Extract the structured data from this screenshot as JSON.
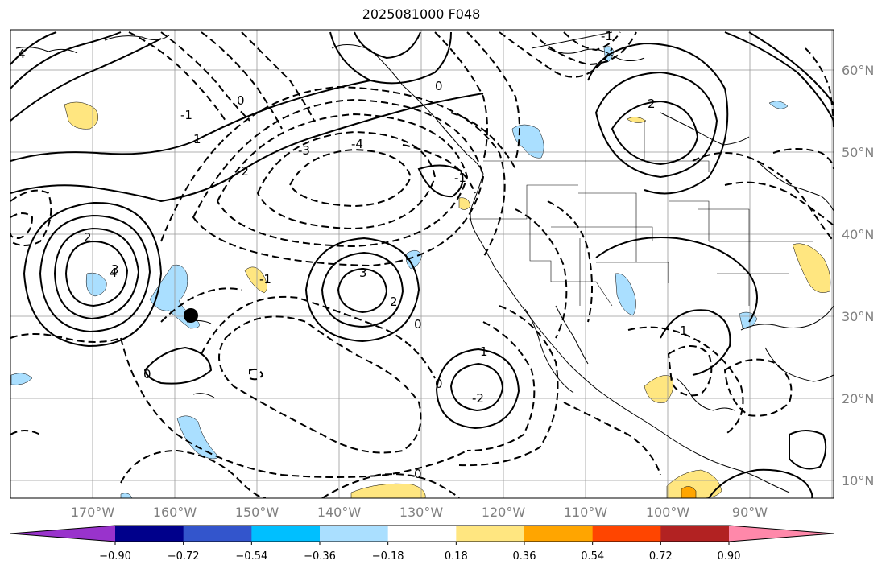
{
  "title": "2025081000 F048",
  "latitude_labels": [
    "60°N",
    "50°N",
    "40°N",
    "30°N",
    "20°N",
    "10°N"
  ],
  "longitude_labels": [
    "170°W",
    "160°W",
    "150°W",
    "140°W",
    "130°W",
    "120°W",
    "110°W",
    "100°W",
    "90°W"
  ],
  "colorbar": {
    "tick_labels": [
      "−0.90",
      "−0.72",
      "−0.54",
      "−0.36",
      "−0.18",
      "0.18",
      "0.36",
      "0.54",
      "0.72",
      "0.90"
    ],
    "colors": [
      "#9933cc",
      "#00008b",
      "#3355cc",
      "#00bfff",
      "#aadfff",
      "#ffffff",
      "#ffe680",
      "#ffa500",
      "#ff4500",
      "#b22222",
      "#ff88aa"
    ]
  },
  "contour_labels": [
    "3",
    "2",
    "4",
    "0",
    "1",
    "-1",
    "-2",
    "-3",
    "-4",
    "0",
    "3",
    "2",
    "-1",
    "0",
    "1",
    "-2",
    "0",
    "2",
    "1",
    "0",
    "-1",
    "0",
    "4",
    "-1"
  ],
  "marker": "black-dot"
}
